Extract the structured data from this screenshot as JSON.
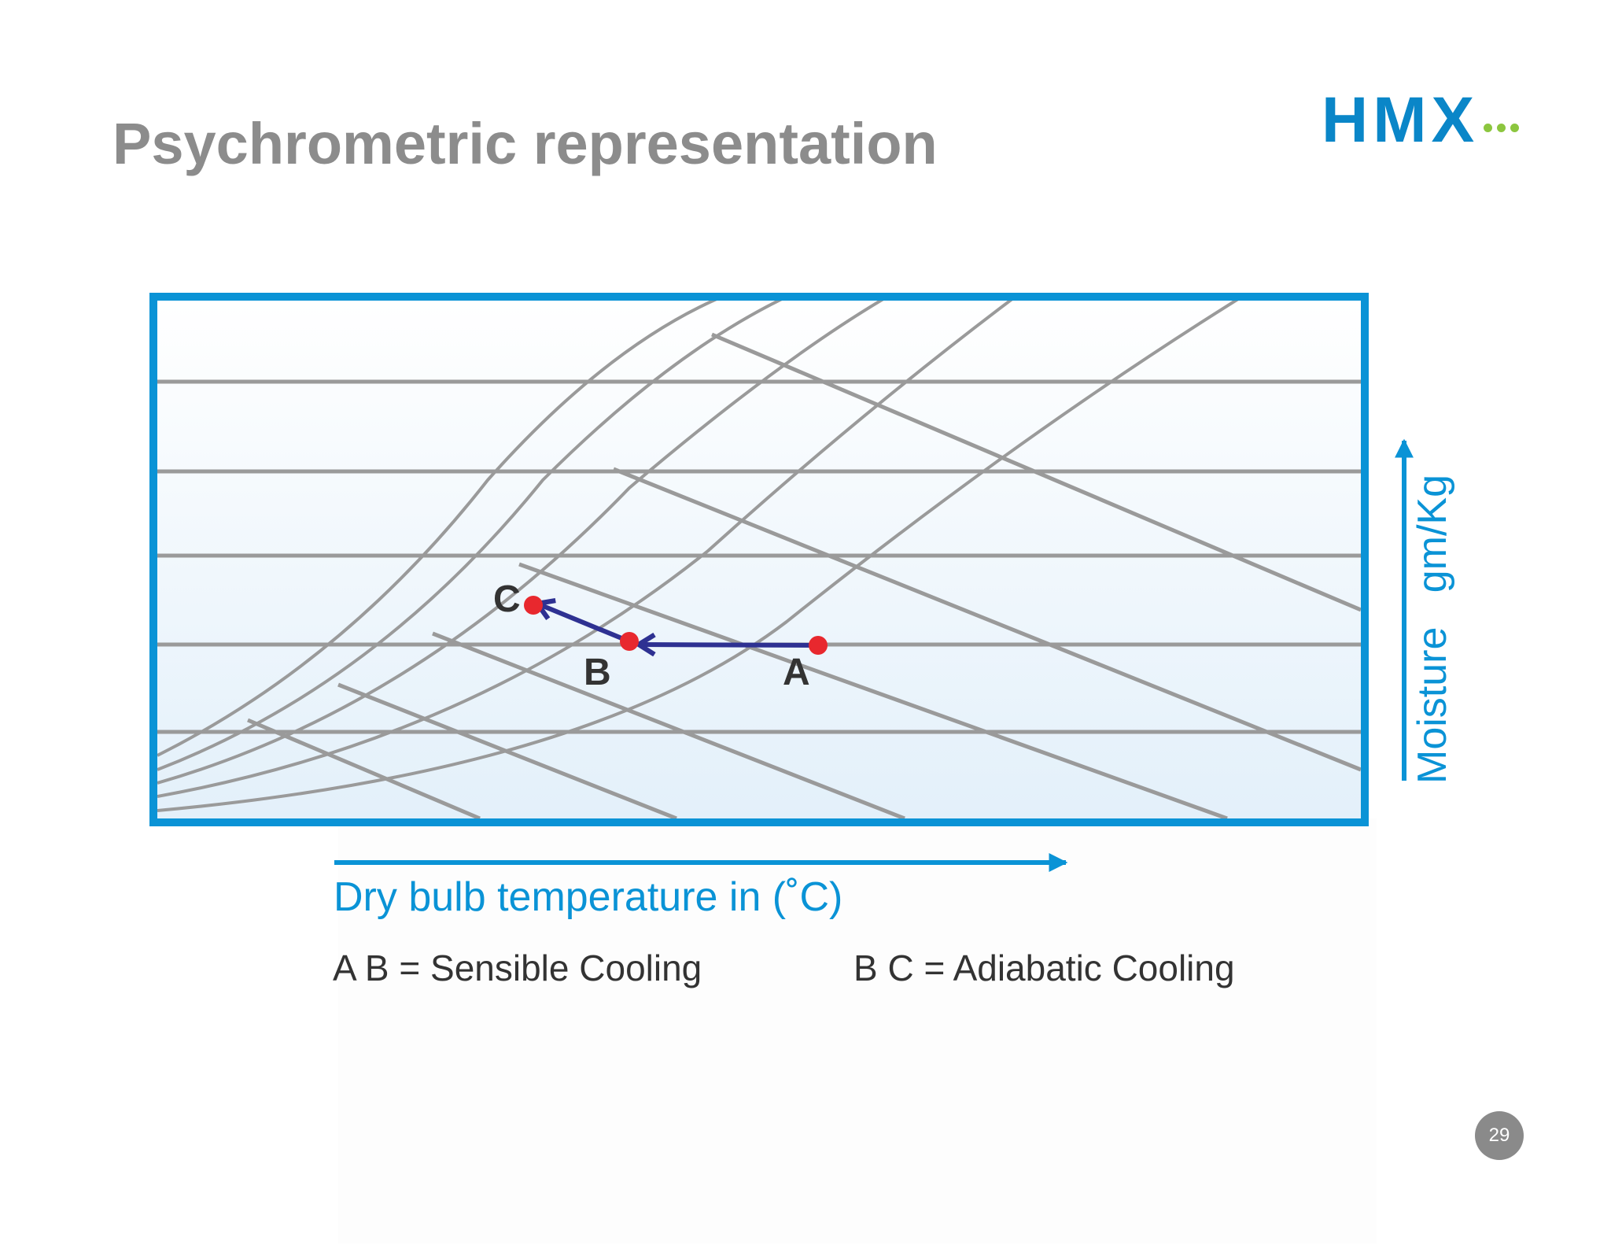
{
  "slide": {
    "title": "Psychrometric representation",
    "page_number": "29"
  },
  "logo": {
    "text": "HMX",
    "color": "#0a86c8",
    "dot_color": "#8cc63f",
    "dot_count": 3
  },
  "diagram": {
    "frame_color": "#0a93d6",
    "line_color": "#9a9a9a",
    "process_color": "#2e3192",
    "point_color": "#e8282e",
    "points": [
      {
        "id": "A",
        "label": "A"
      },
      {
        "id": "B",
        "label": "B"
      },
      {
        "id": "C",
        "label": "C"
      }
    ],
    "x_axis_label": "Dry bulb temperature in (˚C)",
    "y_axis_label": "Moisture   gm/Kg"
  },
  "legend": {
    "ab": "A B = Sensible Cooling",
    "bc": "B C = Adiabatic Cooling"
  }
}
